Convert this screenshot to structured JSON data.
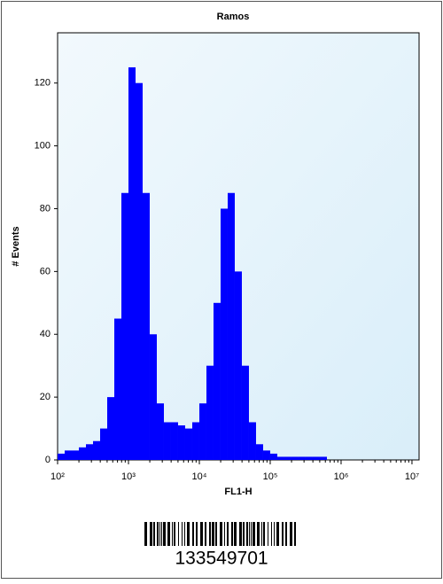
{
  "chart_data": {
    "type": "histogram",
    "title": "Ramos",
    "xlabel": "FL1-H",
    "ylabel": "# Events",
    "color": "#0000ff",
    "log_x": true,
    "bins": [
      100,
      125.9,
      158.5,
      199.5,
      251.2,
      316.2,
      398.1,
      501.2,
      631,
      794.3,
      1000,
      1259,
      1585,
      1995,
      2512,
      3162,
      3981,
      5012,
      6310,
      7943,
      10000,
      12590,
      15850,
      19950,
      25120,
      31620,
      39810,
      50120,
      63100,
      79430,
      100000,
      125900,
      158500,
      199500,
      251200,
      316200,
      398100,
      501200,
      631000,
      794300,
      1000000,
      1259000,
      1585000,
      1995000,
      2512000,
      3162000,
      3981000,
      5012000,
      6310000,
      7943000,
      10000000
    ],
    "values": [
      2,
      3,
      3,
      4,
      5,
      6,
      10,
      20,
      45,
      85,
      125,
      120,
      85,
      40,
      18,
      12,
      12,
      11,
      10,
      12,
      18,
      30,
      50,
      80,
      85,
      60,
      30,
      12,
      5,
      3,
      2,
      1,
      1,
      1,
      1,
      1,
      1,
      1,
      0,
      0,
      0,
      0,
      0,
      0,
      0,
      0,
      0,
      0,
      0,
      0
    ],
    "xlim": [
      100,
      12600000
    ],
    "ylim": [
      0,
      136
    ],
    "xticks": [
      {
        "value": 100,
        "label": "10²"
      },
      {
        "value": 1000,
        "label": "10³"
      },
      {
        "value": 10000,
        "label": "10⁴"
      },
      {
        "value": 100000,
        "label": "10⁵"
      },
      {
        "value": 1000000,
        "label": "10⁶"
      },
      {
        "value": 10000000,
        "label": "10⁷"
      }
    ],
    "yticks": [
      0,
      20,
      40,
      60,
      80,
      100,
      120
    ]
  },
  "barcode": "133549701"
}
